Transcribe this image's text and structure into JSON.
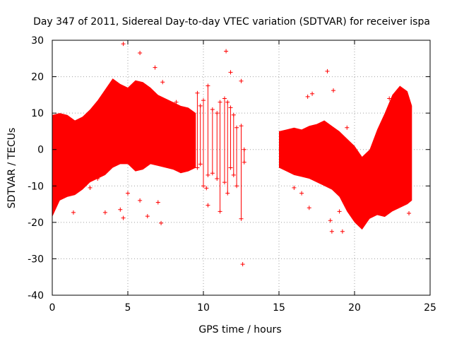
{
  "chart_data": {
    "type": "scatter",
    "title": "Day 347 of 2011, Sidereal Day-to-day VTEC variation (SDTVAR) for receiver ispa",
    "xlabel": "GPS time / hours",
    "ylabel": "SDTVAR / TECUs",
    "xlim": [
      0,
      25
    ],
    "ylim": [
      -40,
      30
    ],
    "xticks": [
      0,
      5,
      10,
      15,
      20,
      25
    ],
    "yticks": [
      -40,
      -30,
      -20,
      -10,
      0,
      10,
      20,
      30
    ],
    "xtick_labels": [
      "0",
      "5",
      "10",
      "15",
      "20",
      "25"
    ],
    "ytick_labels": [
      "-40",
      "-30",
      "-20",
      "-10",
      "0",
      "10",
      "20",
      "30"
    ],
    "grid": true,
    "marker": "+",
    "color": "#ff0000",
    "series": [
      {
        "name": "SDTVAR envelope (segment 1)",
        "x": [
          0.0,
          0.5,
          1.0,
          1.5,
          2.0,
          2.5,
          3.0,
          3.5,
          4.0,
          4.5,
          5.0,
          5.5,
          6.0,
          6.5,
          7.0,
          7.5,
          8.0,
          8.5,
          9.0,
          9.5
        ],
        "upper": [
          9.5,
          10.0,
          9.5,
          8.0,
          9.0,
          11.0,
          13.5,
          16.5,
          19.5,
          18.0,
          17.0,
          19.0,
          18.5,
          17.0,
          15.0,
          14.0,
          13.0,
          12.0,
          11.5,
          10.0
        ],
        "lower": [
          -18.5,
          -14.0,
          -13.0,
          -12.5,
          -11.0,
          -9.0,
          -8.0,
          -7.0,
          -5.0,
          -4.0,
          -4.0,
          -6.0,
          -5.5,
          -4.0,
          -4.5,
          -5.0,
          -5.5,
          -6.5,
          -6.0,
          -5.0
        ]
      },
      {
        "name": "SDTVAR envelope (segment 2)",
        "x": [
          15.0,
          15.5,
          16.0,
          16.5,
          17.0,
          17.5,
          18.0,
          18.5,
          19.0,
          19.5,
          20.0,
          20.5,
          21.0,
          21.5,
          22.0,
          22.5,
          23.0,
          23.5,
          23.8
        ],
        "upper": [
          5.0,
          5.5,
          6.0,
          5.5,
          6.5,
          7.0,
          8.0,
          6.5,
          5.0,
          3.0,
          1.0,
          -2.0,
          0.0,
          5.5,
          10.0,
          15.0,
          17.5,
          16.0,
          12.0
        ],
        "lower": [
          -5.0,
          -6.0,
          -7.0,
          -7.5,
          -8.0,
          -9.0,
          -10.0,
          -11.0,
          -13.0,
          -17.0,
          -20.0,
          -22.0,
          -19.0,
          -18.0,
          -18.5,
          -17.0,
          -16.0,
          -15.0,
          -14.0
        ]
      },
      {
        "name": "Sparse points with error bars",
        "points": [
          {
            "x": 9.6,
            "lo": -5.0,
            "hi": 15.5
          },
          {
            "x": 9.8,
            "lo": -4.0,
            "hi": 12.0
          },
          {
            "x": 10.0,
            "lo": -10.0,
            "hi": 13.5
          },
          {
            "x": 10.3,
            "lo": -7.0,
            "hi": 17.5
          },
          {
            "x": 10.6,
            "lo": -6.5,
            "hi": 11.0
          },
          {
            "x": 10.9,
            "lo": -8.0,
            "hi": 10.0
          },
          {
            "x": 11.1,
            "lo": -17.0,
            "hi": 13.0
          },
          {
            "x": 11.4,
            "lo": -9.0,
            "hi": 14.0
          },
          {
            "x": 11.6,
            "lo": -12.0,
            "hi": 13.0
          },
          {
            "x": 11.8,
            "lo": -5.0,
            "hi": 11.5
          },
          {
            "x": 12.0,
            "lo": -7.0,
            "hi": 9.5
          },
          {
            "x": 12.2,
            "lo": -10.0,
            "hi": 6.0
          },
          {
            "x": 12.5,
            "lo": -19.0,
            "hi": 6.5
          },
          {
            "x": 12.7,
            "lo": -3.5,
            "hi": 0.0
          }
        ]
      },
      {
        "name": "Outliers",
        "points": [
          {
            "x": 4.7,
            "y": 29.0
          },
          {
            "x": 5.8,
            "y": 26.5
          },
          {
            "x": 6.8,
            "y": 22.5
          },
          {
            "x": 7.3,
            "y": 18.5
          },
          {
            "x": 11.5,
            "y": 27.0
          },
          {
            "x": 11.8,
            "y": 21.2
          },
          {
            "x": 12.5,
            "y": 18.8
          },
          {
            "x": 12.6,
            "y": -31.5
          },
          {
            "x": 4.5,
            "y": -16.5
          },
          {
            "x": 4.7,
            "y": -18.8
          },
          {
            "x": 3.5,
            "y": -17.3
          },
          {
            "x": 1.4,
            "y": -17.3
          },
          {
            "x": 6.3,
            "y": -18.3
          },
          {
            "x": 7.2,
            "y": -20.2
          },
          {
            "x": 5.8,
            "y": -14.0
          },
          {
            "x": 7.0,
            "y": -14.5
          },
          {
            "x": 10.3,
            "y": -15.3
          },
          {
            "x": 10.2,
            "y": -10.6
          },
          {
            "x": 8.2,
            "y": 13.0
          },
          {
            "x": 18.2,
            "y": 21.5
          },
          {
            "x": 18.6,
            "y": 16.2
          },
          {
            "x": 17.2,
            "y": 15.3
          },
          {
            "x": 16.9,
            "y": 14.5
          },
          {
            "x": 18.4,
            "y": -19.5
          },
          {
            "x": 18.5,
            "y": -22.5
          },
          {
            "x": 19.0,
            "y": -17.0
          },
          {
            "x": 19.2,
            "y": -22.5
          },
          {
            "x": 16.0,
            "y": -10.5
          },
          {
            "x": 16.5,
            "y": -12.0
          },
          {
            "x": 17.0,
            "y": -16.0
          },
          {
            "x": 15.5,
            "y": -3.0
          },
          {
            "x": 22.3,
            "y": 14.0
          },
          {
            "x": 23.0,
            "y": 15.0
          },
          {
            "x": 22.0,
            "y": 3.0
          },
          {
            "x": 21.0,
            "y": -13.0
          },
          {
            "x": 3.0,
            "y": -8.0
          },
          {
            "x": 2.5,
            "y": -10.5
          },
          {
            "x": 0.5,
            "y": -9.0
          },
          {
            "x": 5.0,
            "y": -12.0
          },
          {
            "x": 20.0,
            "y": -14.0
          },
          {
            "x": 23.6,
            "y": -17.5
          },
          {
            "x": 19.5,
            "y": 6.0
          }
        ]
      }
    ]
  }
}
